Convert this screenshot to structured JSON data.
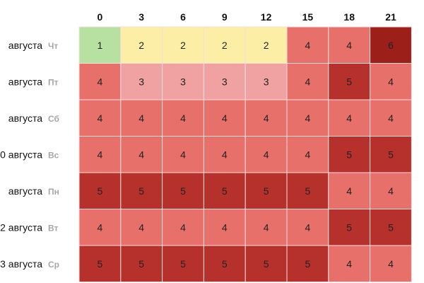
{
  "chart_data": {
    "type": "heatmap",
    "columns": [
      "0",
      "3",
      "6",
      "9",
      "12",
      "15",
      "18",
      "21"
    ],
    "rows": [
      {
        "date": "августа",
        "day": "Чт",
        "values": [
          1,
          2,
          2,
          2,
          2,
          4,
          4,
          6
        ]
      },
      {
        "date": "августа",
        "day": "Пт",
        "values": [
          4,
          3,
          3,
          3,
          3,
          4,
          5,
          4
        ]
      },
      {
        "date": "августа",
        "day": "Сб",
        "values": [
          4,
          4,
          4,
          4,
          4,
          4,
          4,
          4
        ]
      },
      {
        "date": "0 августа",
        "day": "Вс",
        "values": [
          4,
          4,
          4,
          4,
          4,
          4,
          5,
          5
        ]
      },
      {
        "date": "августа",
        "day": "Пн",
        "values": [
          5,
          5,
          5,
          5,
          5,
          5,
          4,
          4
        ]
      },
      {
        "date": "2 августа",
        "day": "Вт",
        "values": [
          4,
          4,
          4,
          4,
          4,
          4,
          5,
          5
        ]
      },
      {
        "date": "3 августа",
        "day": "Ср",
        "values": [
          5,
          5,
          5,
          5,
          5,
          5,
          4,
          4
        ]
      }
    ],
    "color_scale": {
      "1": "#b7e1a1",
      "2": "#fcefa5",
      "3": "#f0a1a1",
      "4": "#e8706a",
      "5": "#b7312c",
      "6": "#9c1f1a"
    },
    "grid_color": "#f3dede"
  }
}
